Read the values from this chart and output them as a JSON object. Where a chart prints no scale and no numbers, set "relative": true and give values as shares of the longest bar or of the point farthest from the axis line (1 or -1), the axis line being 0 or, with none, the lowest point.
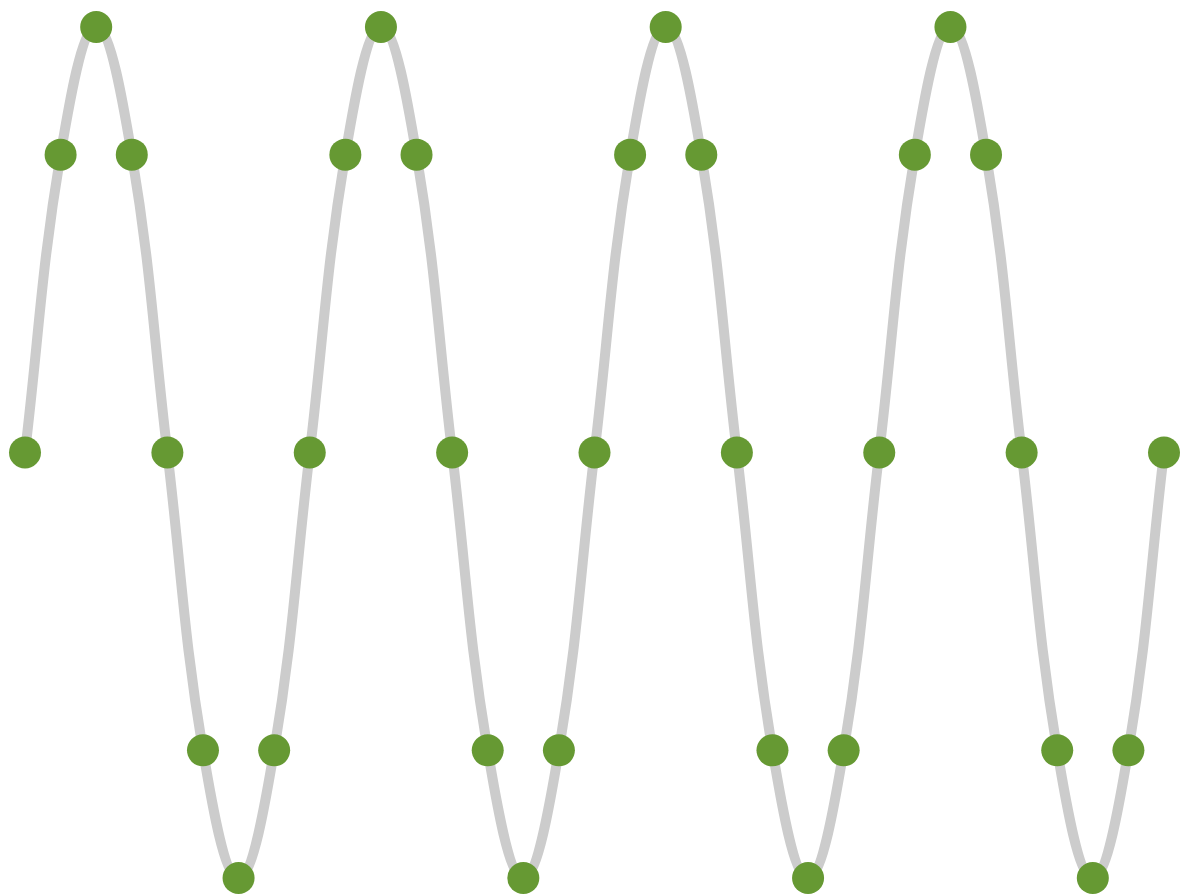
{
  "chart_data": {
    "type": "line",
    "relative": true,
    "marker": "circle",
    "legend": false,
    "grid": false,
    "categories": [
      null,
      null,
      null,
      null,
      null,
      null,
      null,
      null,
      null,
      null,
      null,
      null,
      null,
      null,
      null,
      null,
      null,
      null,
      null,
      null,
      null,
      null,
      null,
      null,
      null,
      null,
      null,
      null,
      null,
      null,
      null,
      null,
      null
    ],
    "series": [
      {
        "color": "#cccccc",
        "colors": [
          "#669933",
          "#669933",
          "#669933",
          "#669933",
          "#669933",
          "#669933",
          "#669933",
          "#669933",
          "#669933",
          "#669933",
          "#669933",
          "#669933",
          "#669933",
          "#669933",
          "#669933",
          "#669933",
          "#669933",
          "#669933",
          "#669933",
          "#669933",
          "#669933",
          "#669933",
          "#669933",
          "#669933",
          "#669933",
          "#669933",
          "#669933",
          "#669933",
          "#669933",
          "#669933",
          "#669933",
          "#669933",
          "#669933"
        ],
        "values": [
          0.5,
          0.85,
          1,
          0.85,
          0.5,
          0.15,
          0,
          0.15,
          0.5,
          0.85,
          1,
          0.85,
          0.5,
          0.15,
          0,
          0.15,
          0.5,
          0.85,
          1,
          0.85,
          0.5,
          0.15,
          0,
          0.15,
          0.5,
          0.85,
          1,
          0.85,
          0.5,
          0.15,
          0,
          0.15,
          0.5
        ]
      }
    ]
  }
}
